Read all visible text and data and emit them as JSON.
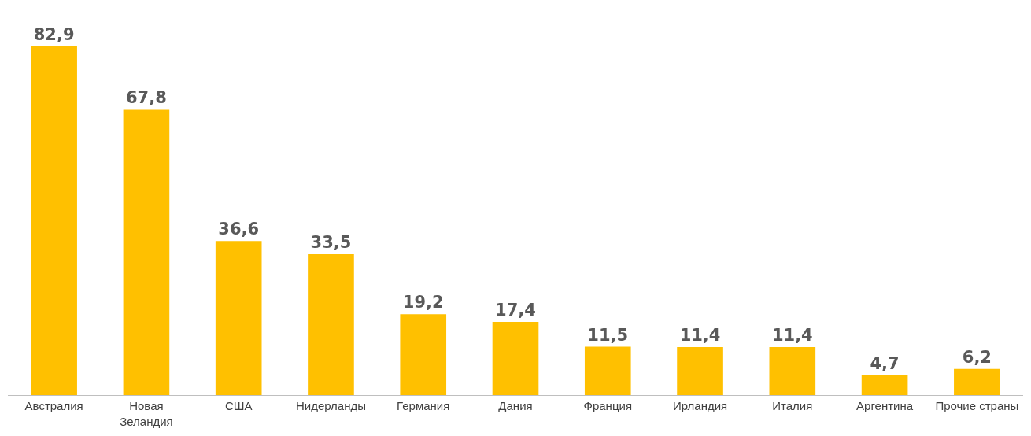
{
  "chart_data": {
    "type": "bar",
    "categories": [
      "Австралия",
      "Новая\nЗеландия",
      "США",
      "Нидерланды",
      "Германия",
      "Дания",
      "Франция",
      "Ирландия",
      "Италия",
      "Аргентина",
      "Прочие страны"
    ],
    "values": [
      82.9,
      67.8,
      36.6,
      33.5,
      19.2,
      17.4,
      11.5,
      11.4,
      11.4,
      4.7,
      6.2
    ],
    "value_labels": [
      "82,9",
      "67,8",
      "36,6",
      "33,5",
      "19,2",
      "17,4",
      "11,5",
      "11,4",
      "11,4",
      "4,7",
      "6,2"
    ],
    "color": "#ffc000"
  }
}
